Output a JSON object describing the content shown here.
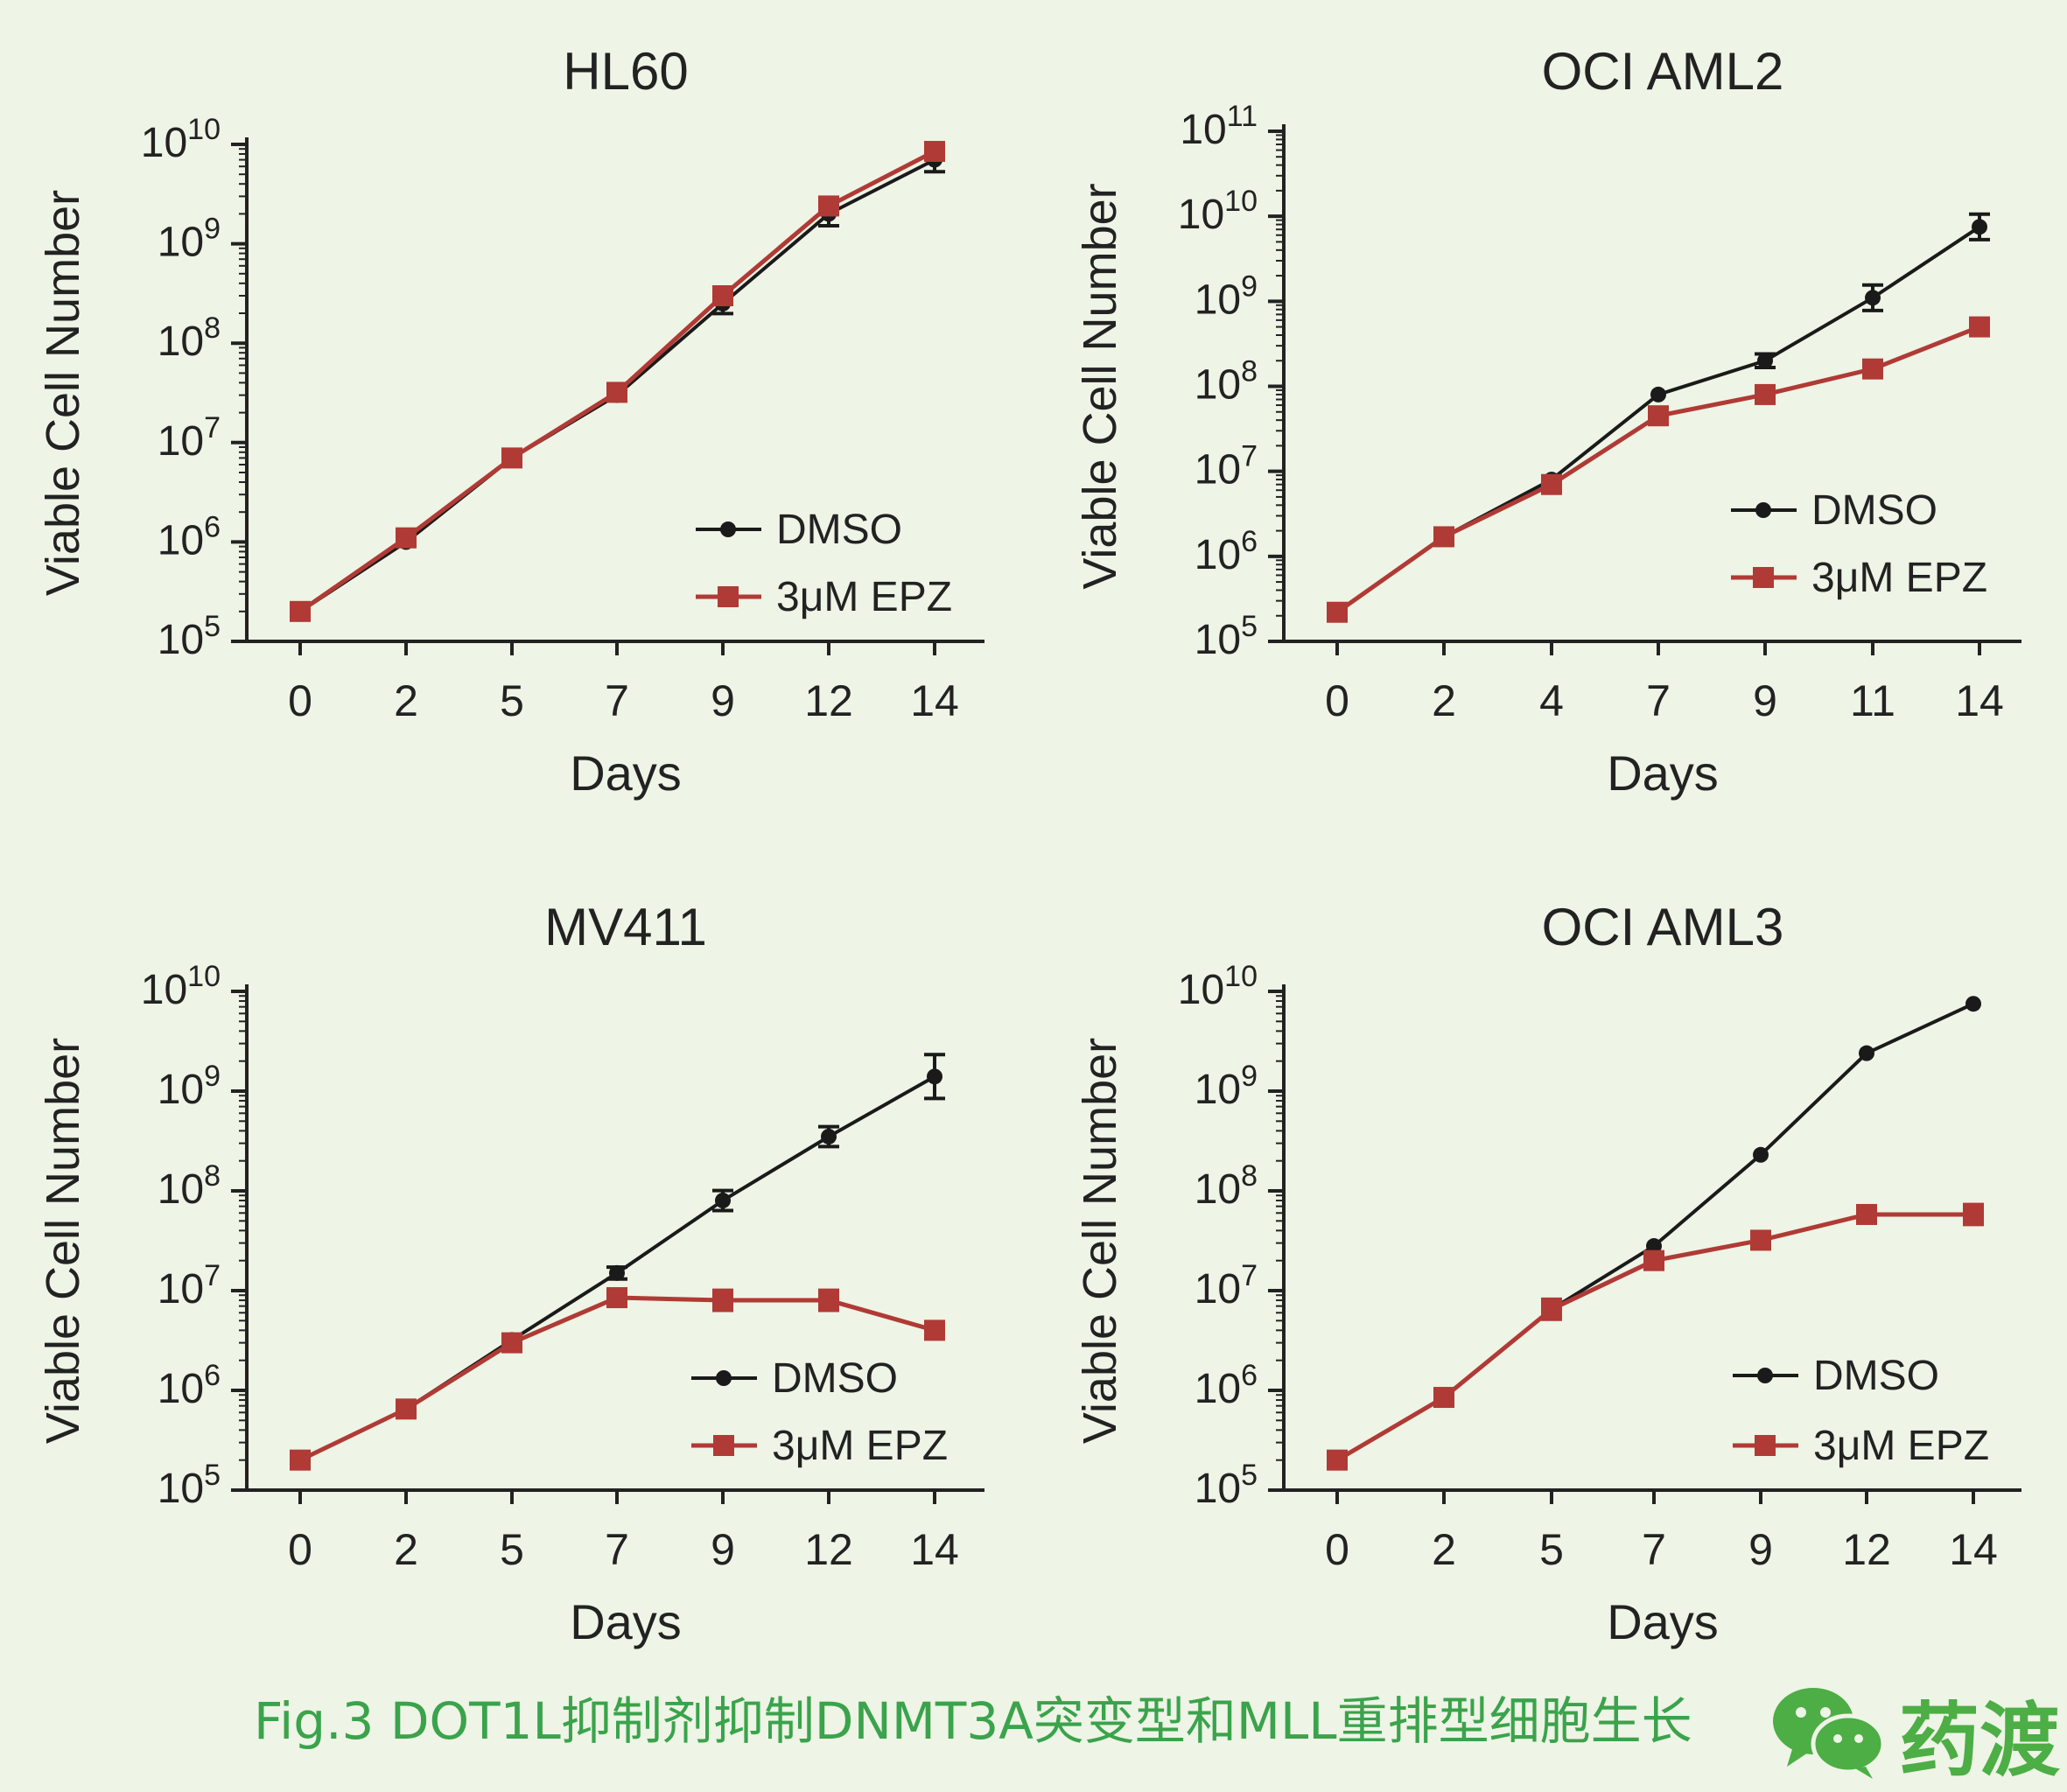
{
  "colors": {
    "background": "#eef4e6",
    "dmso": "#1a1a1a",
    "epz": "#b03a35",
    "axis": "#222222",
    "caption": "#3aa34b",
    "logo_green": "#4cae45"
  },
  "chart_data": [
    {
      "type": "line",
      "title": "HL60",
      "xlabel": "Days",
      "ylabel": "Viable Cell Number",
      "y_scale": "log10",
      "ylim_exponent": [
        5,
        10
      ],
      "ytick_labels": [
        {
          "base": "10",
          "exp": "5"
        },
        {
          "base": "10",
          "exp": "6"
        },
        {
          "base": "10",
          "exp": "7"
        },
        {
          "base": "10",
          "exp": "8"
        },
        {
          "base": "10",
          "exp": "9"
        },
        {
          "base": "10",
          "exp": "10"
        }
      ],
      "categories": [
        "0",
        "2",
        "5",
        "7",
        "9",
        "12",
        "14"
      ],
      "legend": {
        "position": "bottom-right",
        "entries": [
          "DMSO",
          "3μM EPZ"
        ]
      },
      "series": [
        {
          "name": "DMSO",
          "marker": "circle",
          "values": [
            200000.0,
            1000000.0,
            7000000.0,
            30000000.0,
            250000000.0,
            2000000000.0,
            7000000000.0
          ],
          "errors_log": [
            0,
            0,
            0,
            0,
            0.1,
            0.12,
            0.12
          ]
        },
        {
          "name": "3μM EPZ",
          "marker": "square",
          "values": [
            200000.0,
            1100000.0,
            7000000.0,
            32000000.0,
            300000000.0,
            2400000000.0,
            8500000000.0
          ],
          "errors_log": [
            0,
            0,
            0,
            0,
            0,
            0,
            0
          ]
        }
      ]
    },
    {
      "type": "line",
      "title": "OCI AML2",
      "xlabel": "Days",
      "ylabel": "Viable Cell Number",
      "y_scale": "log10",
      "ylim_exponent": [
        5,
        11
      ],
      "ytick_labels": [
        {
          "base": "10",
          "exp": "5"
        },
        {
          "base": "10",
          "exp": "6"
        },
        {
          "base": "10",
          "exp": "7"
        },
        {
          "base": "10",
          "exp": "8"
        },
        {
          "base": "10",
          "exp": "9"
        },
        {
          "base": "10",
          "exp": "10"
        },
        {
          "base": "10",
          "exp": "11"
        }
      ],
      "categories": [
        "0",
        "2",
        "4",
        "7",
        "9",
        "11",
        "14"
      ],
      "legend": {
        "position": "right",
        "entries": [
          "DMSO",
          "3μM EPZ"
        ]
      },
      "series": [
        {
          "name": "DMSO",
          "marker": "circle",
          "values": [
            220000.0,
            1700000.0,
            8000000.0,
            80000000.0,
            200000000.0,
            1100000000.0,
            7500000000.0
          ],
          "errors_log": [
            0,
            0,
            0,
            0,
            0.08,
            0.15,
            0.15
          ]
        },
        {
          "name": "3μM EPZ",
          "marker": "square",
          "values": [
            220000.0,
            1700000.0,
            7000000.0,
            45000000.0,
            80000000.0,
            160000000.0,
            500000000.0
          ],
          "errors_log": [
            0,
            0,
            0,
            0,
            0,
            0,
            0
          ]
        }
      ]
    },
    {
      "type": "line",
      "title": "MV411",
      "xlabel": "Days",
      "ylabel": "Viable Cell Number",
      "y_scale": "log10",
      "ylim_exponent": [
        5,
        10
      ],
      "ytick_labels": [
        {
          "base": "10",
          "exp": "5"
        },
        {
          "base": "10",
          "exp": "6"
        },
        {
          "base": "10",
          "exp": "7"
        },
        {
          "base": "10",
          "exp": "8"
        },
        {
          "base": "10",
          "exp": "9"
        },
        {
          "base": "10",
          "exp": "10"
        }
      ],
      "categories": [
        "0",
        "2",
        "5",
        "7",
        "9",
        "12",
        "14"
      ],
      "legend": {
        "position": "bottom-right",
        "entries": [
          "DMSO",
          "3μM EPZ"
        ]
      },
      "series": [
        {
          "name": "DMSO",
          "marker": "circle",
          "values": [
            200000.0,
            650000.0,
            3200000.0,
            15000000.0,
            80000000.0,
            350000000.0,
            1400000000.0
          ],
          "errors_log": [
            0,
            0,
            0,
            0.06,
            0.1,
            0.1,
            0.22
          ]
        },
        {
          "name": "3μM EPZ",
          "marker": "square",
          "values": [
            200000.0,
            650000.0,
            3000000.0,
            8500000.0,
            8000000.0,
            8000000.0,
            4000000.0
          ],
          "errors_log": [
            0,
            0,
            0,
            0.08,
            0.1,
            0.1,
            0
          ]
        }
      ]
    },
    {
      "type": "line",
      "title": "OCI AML3",
      "xlabel": "Days",
      "ylabel": "Viable Cell Number",
      "y_scale": "log10",
      "ylim_exponent": [
        5,
        10
      ],
      "ytick_labels": [
        {
          "base": "10",
          "exp": "5"
        },
        {
          "base": "10",
          "exp": "6"
        },
        {
          "base": "10",
          "exp": "7"
        },
        {
          "base": "10",
          "exp": "8"
        },
        {
          "base": "10",
          "exp": "9"
        },
        {
          "base": "10",
          "exp": "10"
        }
      ],
      "categories": [
        "0",
        "2",
        "5",
        "7",
        "9",
        "12",
        "14"
      ],
      "legend": {
        "position": "bottom-right",
        "entries": [
          "DMSO",
          "3μM EPZ"
        ]
      },
      "series": [
        {
          "name": "DMSO",
          "marker": "circle",
          "values": [
            200000.0,
            850000.0,
            6500000.0,
            28000000.0,
            230000000.0,
            2400000000.0,
            7500000000.0
          ],
          "errors_log": [
            0,
            0,
            0,
            0,
            0,
            0,
            0
          ]
        },
        {
          "name": "3μM EPZ",
          "marker": "square",
          "values": [
            200000.0,
            850000.0,
            6500000.0,
            20000000.0,
            32000000.0,
            58000000.0,
            58000000.0
          ],
          "errors_log": [
            0,
            0,
            0.1,
            0.06,
            0,
            0,
            0.1
          ]
        }
      ]
    }
  ],
  "caption": "Fig.3 DOT1L抑制剂抑制DNMT3A突变型和MLL重排型细胞生长",
  "logo_text": "药渡"
}
